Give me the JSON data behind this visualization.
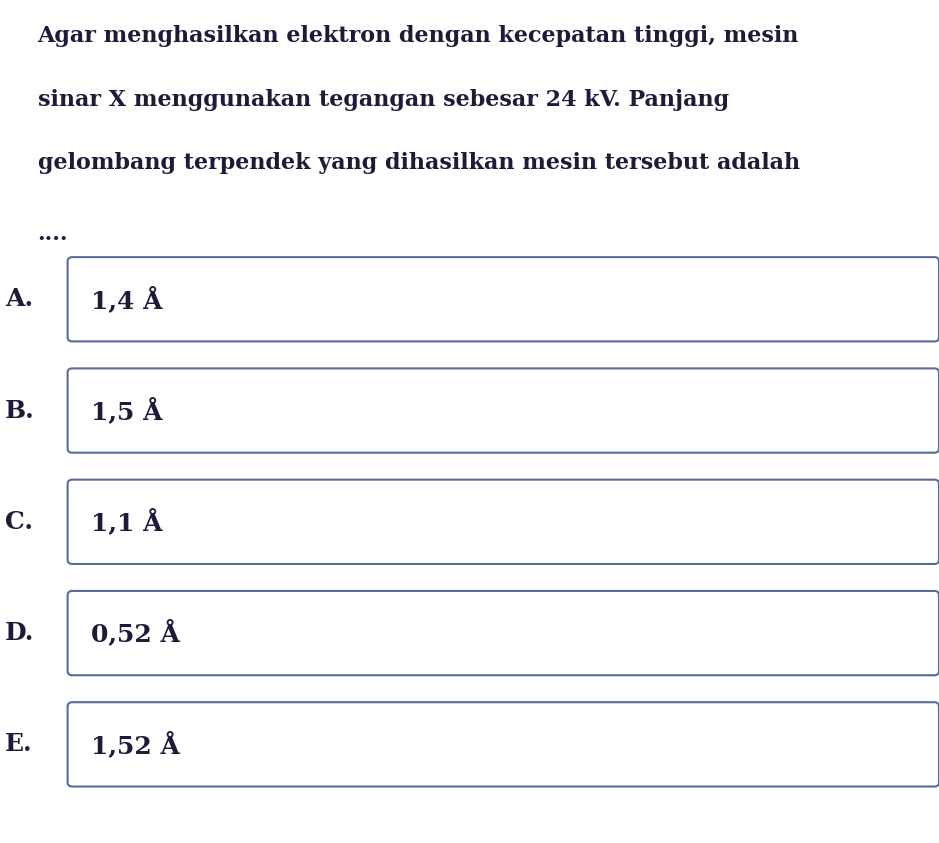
{
  "question_lines": [
    "Agar menghasilkan elektron dengan kecepatan tinggi, mesin",
    "sinar X menggunakan tegangan sebesar 24 kV. Panjang",
    "gelombang terpendek yang dihasilkan mesin tersebut adalah"
  ],
  "dots": "....",
  "option_labels": [
    "A.",
    "B.",
    "C.",
    "D.",
    "E."
  ],
  "option_texts": [
    "1,4 Å",
    "1,5 Å",
    "1,1 Å",
    "0,52 Å",
    "1,52 Å"
  ],
  "bg_color": "#ffffff",
  "text_color": "#1c1c3a",
  "box_border_color": "#5a6a9a",
  "question_fontsize": 16,
  "option_fontsize": 18,
  "dots_fontsize": 16
}
